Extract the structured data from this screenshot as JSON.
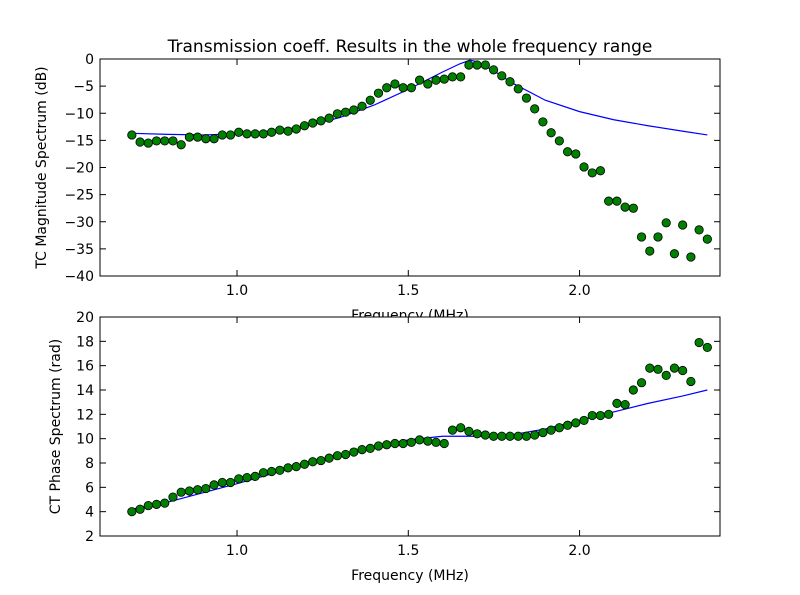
{
  "chart_data": [
    {
      "type": "line",
      "title": "Transmission coeff. Results in the whole frequency range",
      "xlabel": "Frequency (MHz)",
      "ylabel": "TC Magnitude Spectrum (dB)",
      "xlim": [
        0.6,
        2.41
      ],
      "ylim": [
        -40,
        0
      ],
      "xticks": [
        {
          "value": 1,
          "label": "1.0"
        },
        {
          "value": 1.5,
          "label": "1.5"
        },
        {
          "value": 2,
          "label": "2.0"
        }
      ],
      "yticks": [
        {
          "value": -40,
          "label": "−40"
        },
        {
          "value": -35,
          "label": "−35"
        },
        {
          "value": -30,
          "label": "−30"
        },
        {
          "value": -25,
          "label": "−25"
        },
        {
          "value": -20,
          "label": "−20"
        },
        {
          "value": -15,
          "label": "−15"
        },
        {
          "value": -10,
          "label": "−10"
        },
        {
          "value": -5,
          "label": "−5"
        },
        0
      ],
      "series": [
        {
          "color": "#008000",
          "marker": "o",
          "x": [
            0.693,
            0.717,
            0.741,
            0.765,
            0.789,
            0.813,
            0.837,
            0.861,
            0.885,
            0.909,
            0.933,
            0.957,
            0.981,
            1.005,
            1.029,
            1.053,
            1.077,
            1.101,
            1.125,
            1.149,
            1.173,
            1.197,
            1.221,
            1.245,
            1.269,
            1.293,
            1.317,
            1.341,
            1.365,
            1.389,
            1.413,
            1.437,
            1.461,
            1.485,
            1.509,
            1.533,
            1.557,
            1.581,
            1.605,
            1.629,
            1.653,
            1.677,
            1.701,
            1.725,
            1.749,
            1.773,
            1.797,
            1.821,
            1.845,
            1.869,
            1.893,
            1.917,
            1.941,
            1.965,
            1.989,
            2.013,
            2.037,
            2.061,
            2.085,
            2.109,
            2.133,
            2.157,
            2.181,
            2.205,
            2.229,
            2.253,
            2.277,
            2.301,
            2.325,
            2.349,
            2.373
          ],
          "values": [
            -14.0,
            -15.3,
            -15.5,
            -15.1,
            -15.1,
            -15.1,
            -15.8,
            -14.4,
            -14.4,
            -14.7,
            -14.7,
            -14.0,
            -14.0,
            -13.5,
            -13.8,
            -13.8,
            -13.8,
            -13.5,
            -13.1,
            -13.3,
            -12.9,
            -12.3,
            -11.8,
            -11.4,
            -10.9,
            -10.1,
            -9.8,
            -9.4,
            -8.7,
            -7.6,
            -6.3,
            -5.3,
            -4.6,
            -5.3,
            -5.3,
            -3.9,
            -4.6,
            -3.9,
            -3.7,
            -3.3,
            -3.3,
            -1.1,
            -1.1,
            -1.1,
            -2.0,
            -3.1,
            -4.2,
            -5.5,
            -7.2,
            -9.2,
            -11.6,
            -13.6,
            -15.1,
            -17.1,
            -17.5,
            -19.9,
            -21.0,
            -20.6,
            -26.2,
            -26.2,
            -27.3,
            -27.5,
            -32.8,
            -35.4,
            -32.8,
            -30.2,
            -35.9,
            -30.6,
            -36.5,
            -31.5,
            -33.2
          ]
        },
        {
          "color": "#0000ff",
          "x": [
            0.693,
            0.8,
            0.9,
            1.0,
            1.1,
            1.2,
            1.3,
            1.4,
            1.5,
            1.6,
            1.65,
            1.68,
            1.7,
            1.75,
            1.8,
            1.9,
            2.0,
            2.1,
            2.2,
            2.3,
            2.373
          ],
          "values": [
            -13.7,
            -13.9,
            -14.0,
            -13.8,
            -13.3,
            -12.4,
            -10.8,
            -8.5,
            -5.6,
            -2.4,
            -0.9,
            -0.2,
            -0.5,
            -2.2,
            -4.3,
            -7.6,
            -9.7,
            -11.2,
            -12.3,
            -13.3,
            -14.0
          ]
        }
      ]
    },
    {
      "type": "line",
      "xlabel": "Frequency (MHz)",
      "ylabel": "CT Phase Spectrum (rad)",
      "xlim": [
        0.6,
        2.41
      ],
      "ylim": [
        2,
        20
      ],
      "xticks": [
        {
          "value": 1,
          "label": "1.0"
        },
        {
          "value": 1.5,
          "label": "1.5"
        },
        {
          "value": 2,
          "label": "2.0"
        }
      ],
      "yticks": [
        2,
        4,
        6,
        8,
        10,
        12,
        14,
        16,
        18,
        20
      ],
      "series": [
        {
          "color": "#008000",
          "marker": "o",
          "x": [
            0.693,
            0.717,
            0.741,
            0.765,
            0.789,
            0.813,
            0.837,
            0.861,
            0.885,
            0.909,
            0.933,
            0.957,
            0.981,
            1.005,
            1.029,
            1.053,
            1.077,
            1.101,
            1.125,
            1.149,
            1.173,
            1.197,
            1.221,
            1.245,
            1.269,
            1.293,
            1.317,
            1.341,
            1.365,
            1.389,
            1.413,
            1.437,
            1.461,
            1.485,
            1.509,
            1.533,
            1.557,
            1.581,
            1.605,
            1.629,
            1.653,
            1.677,
            1.701,
            1.725,
            1.749,
            1.773,
            1.797,
            1.821,
            1.845,
            1.869,
            1.893,
            1.917,
            1.941,
            1.965,
            1.989,
            2.013,
            2.037,
            2.061,
            2.085,
            2.109,
            2.133,
            2.157,
            2.181,
            2.205,
            2.229,
            2.253,
            2.277,
            2.301,
            2.325,
            2.349,
            2.373
          ],
          "values": [
            4.0,
            4.2,
            4.5,
            4.6,
            4.7,
            5.2,
            5.6,
            5.7,
            5.8,
            5.9,
            6.2,
            6.4,
            6.4,
            6.7,
            6.8,
            6.9,
            7.2,
            7.3,
            7.4,
            7.6,
            7.7,
            7.9,
            8.1,
            8.2,
            8.4,
            8.6,
            8.7,
            8.9,
            9.1,
            9.2,
            9.4,
            9.5,
            9.6,
            9.6,
            9.7,
            9.9,
            9.8,
            9.7,
            9.6,
            10.7,
            10.9,
            10.6,
            10.4,
            10.3,
            10.2,
            10.2,
            10.2,
            10.2,
            10.2,
            10.3,
            10.5,
            10.7,
            10.9,
            11.1,
            11.3,
            11.5,
            11.9,
            11.9,
            12.0,
            12.9,
            12.8,
            14.0,
            14.6,
            15.8,
            15.7,
            15.2,
            15.8,
            15.6,
            14.7,
            17.9,
            17.5
          ]
        },
        {
          "color": "#0000ff",
          "x": [
            0.693,
            0.8,
            1.0,
            1.2,
            1.4,
            1.5,
            1.6,
            1.7,
            1.8,
            1.9,
            2.0,
            2.1,
            2.2,
            2.3,
            2.373
          ],
          "values": [
            4.2,
            4.8,
            6.3,
            7.9,
            9.3,
            9.9,
            10.2,
            10.2,
            10.3,
            10.8,
            11.5,
            12.2,
            12.9,
            13.5,
            14.0
          ]
        }
      ]
    }
  ]
}
